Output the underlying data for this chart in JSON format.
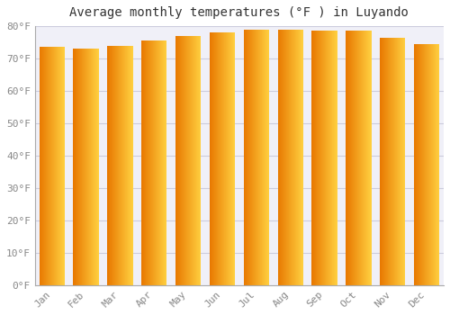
{
  "title": "Average monthly temperatures (°F ) in Luyando",
  "months": [
    "Jan",
    "Feb",
    "Mar",
    "Apr",
    "May",
    "Jun",
    "Jul",
    "Aug",
    "Sep",
    "Oct",
    "Nov",
    "Dec"
  ],
  "values": [
    73.5,
    73.0,
    74.0,
    75.5,
    77.0,
    78.0,
    79.0,
    79.0,
    78.5,
    78.5,
    76.5,
    74.5
  ],
  "bar_color_left": "#E87800",
  "bar_color_right": "#FFD040",
  "ylim": [
    0,
    80
  ],
  "yticks": [
    0,
    10,
    20,
    30,
    40,
    50,
    60,
    70,
    80
  ],
  "ytick_labels": [
    "0°F",
    "10°F",
    "20°F",
    "30°F",
    "40°F",
    "50°F",
    "60°F",
    "70°F",
    "80°F"
  ],
  "background_color": "#FFFFFF",
  "plot_bg_color": "#F0F0F8",
  "grid_color": "#CCCCDD",
  "title_fontsize": 10,
  "tick_fontsize": 8,
  "font_family": "monospace"
}
